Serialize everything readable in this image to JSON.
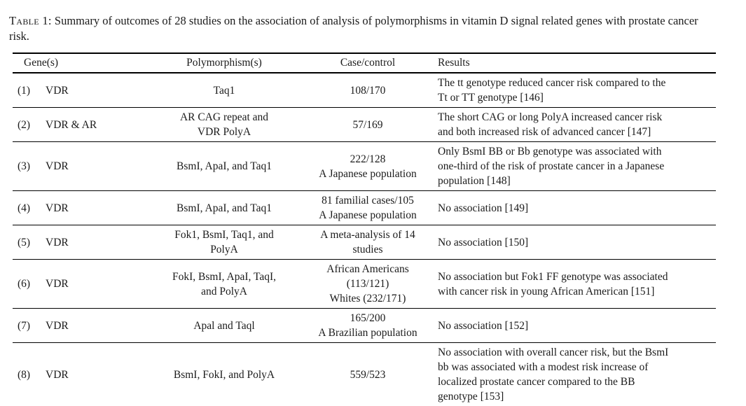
{
  "colors": {
    "text": "#1b1b1b",
    "rule": "#000000",
    "background": "#ffffff"
  },
  "caption": {
    "label": "Table 1:",
    "text": " Summary of outcomes of 28 studies on the association of analysis of polymorphisms in vitamin D signal related genes with prostate cancer risk."
  },
  "table": {
    "headers": [
      "Gene(s)",
      "Polymorphism(s)",
      "Case/control",
      "Results"
    ],
    "rows": [
      {
        "num": "(1)",
        "gene": "VDR",
        "polymorphism_lines": [
          "Taq1"
        ],
        "case_control_lines": [
          "108/170"
        ],
        "results_lines": [
          "The tt genotype reduced cancer risk compared to the",
          "Tt or TT genotype [146]"
        ]
      },
      {
        "num": "(2)",
        "gene": "VDR & AR",
        "polymorphism_lines": [
          "AR CAG repeat and",
          "VDR PolyA"
        ],
        "case_control_lines": [
          "57/169"
        ],
        "results_lines": [
          "The short CAG or long PolyA increased cancer risk",
          "and both increased risk of advanced cancer [147]"
        ]
      },
      {
        "num": "(3)",
        "gene": "VDR",
        "polymorphism_lines": [
          "BsmI, ApaI, and Taq1"
        ],
        "case_control_lines": [
          "222/128",
          "A Japanese population"
        ],
        "results_lines": [
          "Only BsmI BB or Bb genotype was associated with",
          "one-third of the risk of prostate cancer in a Japanese",
          "population [148]"
        ]
      },
      {
        "num": "(4)",
        "gene": "VDR",
        "polymorphism_lines": [
          "BsmI, ApaI, and Taq1"
        ],
        "case_control_lines": [
          "81 familial cases/105",
          "A Japanese population"
        ],
        "results_lines": [
          "No association [149]"
        ]
      },
      {
        "num": "(5)",
        "gene": "VDR",
        "polymorphism_lines": [
          "Fok1, BsmI, Taq1, and",
          "PolyA"
        ],
        "case_control_lines": [
          "A meta-analysis of 14",
          "studies"
        ],
        "results_lines": [
          "No association [150]"
        ]
      },
      {
        "num": "(6)",
        "gene": "VDR",
        "polymorphism_lines": [
          "FokI, BsmI, ApaI, TaqI,",
          "and PolyA"
        ],
        "case_control_lines": [
          "African Americans",
          "(113/121)",
          "Whites (232/171)"
        ],
        "results_lines": [
          "No association but Fok1 FF genotype was associated",
          "with cancer risk in young African American [151]"
        ]
      },
      {
        "num": "(7)",
        "gene": "VDR",
        "polymorphism_lines": [
          "Apal and Taql"
        ],
        "case_control_lines": [
          "165/200",
          "A Brazilian population"
        ],
        "results_lines": [
          "No association [152]"
        ]
      },
      {
        "num": "(8)",
        "gene": "VDR",
        "polymorphism_lines": [
          "BsmI, FokI, and PolyA"
        ],
        "case_control_lines": [
          "559/523"
        ],
        "results_lines": [
          "No association with overall cancer risk, but the BsmI",
          "bb was associated with a modest risk increase of",
          "localized prostate cancer compared to the BB",
          "genotype [153]"
        ]
      }
    ]
  }
}
